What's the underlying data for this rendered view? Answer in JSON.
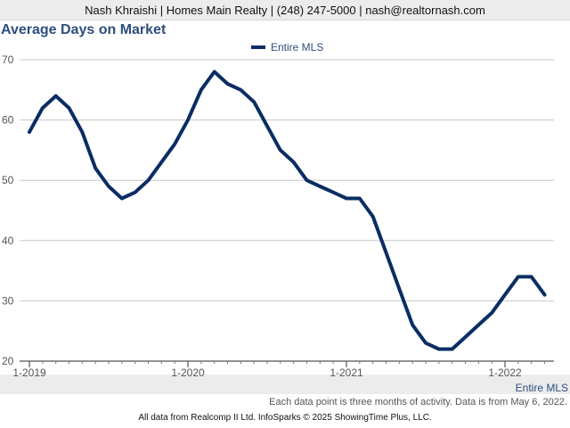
{
  "header": {
    "contact_line": "Nash Khraishi | Homes Main Realty | (248) 247-5000 | nash@realtornash.com"
  },
  "chart_data": {
    "type": "line",
    "title": "Average Days on Market",
    "xlabel": "",
    "ylabel": "",
    "ylim": [
      20,
      70
    ],
    "yticks": [
      20,
      30,
      40,
      50,
      60,
      70
    ],
    "xticks": [
      "1-2019",
      "1-2020",
      "1-2021",
      "1-2022"
    ],
    "grid": true,
    "legend_position": "top-center",
    "x": [
      "1-2019",
      "2-2019",
      "3-2019",
      "4-2019",
      "5-2019",
      "6-2019",
      "7-2019",
      "8-2019",
      "9-2019",
      "10-2019",
      "11-2019",
      "12-2019",
      "1-2020",
      "2-2020",
      "3-2020",
      "4-2020",
      "5-2020",
      "6-2020",
      "7-2020",
      "8-2020",
      "9-2020",
      "10-2020",
      "11-2020",
      "12-2020",
      "1-2021",
      "2-2021",
      "3-2021",
      "4-2021",
      "5-2021",
      "6-2021",
      "7-2021",
      "8-2021",
      "9-2021",
      "10-2021",
      "11-2021",
      "12-2021",
      "1-2022",
      "2-2022",
      "3-2022",
      "4-2022"
    ],
    "series": [
      {
        "name": "Entire MLS",
        "color": "#0a2d63",
        "values": [
          58,
          62,
          64,
          62,
          58,
          52,
          49,
          47,
          48,
          50,
          53,
          56,
          60,
          65,
          68,
          66,
          65,
          63,
          59,
          55,
          53,
          50,
          49,
          48,
          47,
          47,
          44,
          38,
          32,
          26,
          23,
          22,
          22,
          24,
          26,
          28,
          31,
          34,
          34,
          31
        ]
      }
    ]
  },
  "footer": {
    "series_label": "Entire MLS",
    "note": "Each data point is three months of activity. Data is from May 6, 2022.",
    "credit": "All data from Realcomp II Ltd. InfoSparks © 2025 ShowingTime Plus, LLC."
  }
}
